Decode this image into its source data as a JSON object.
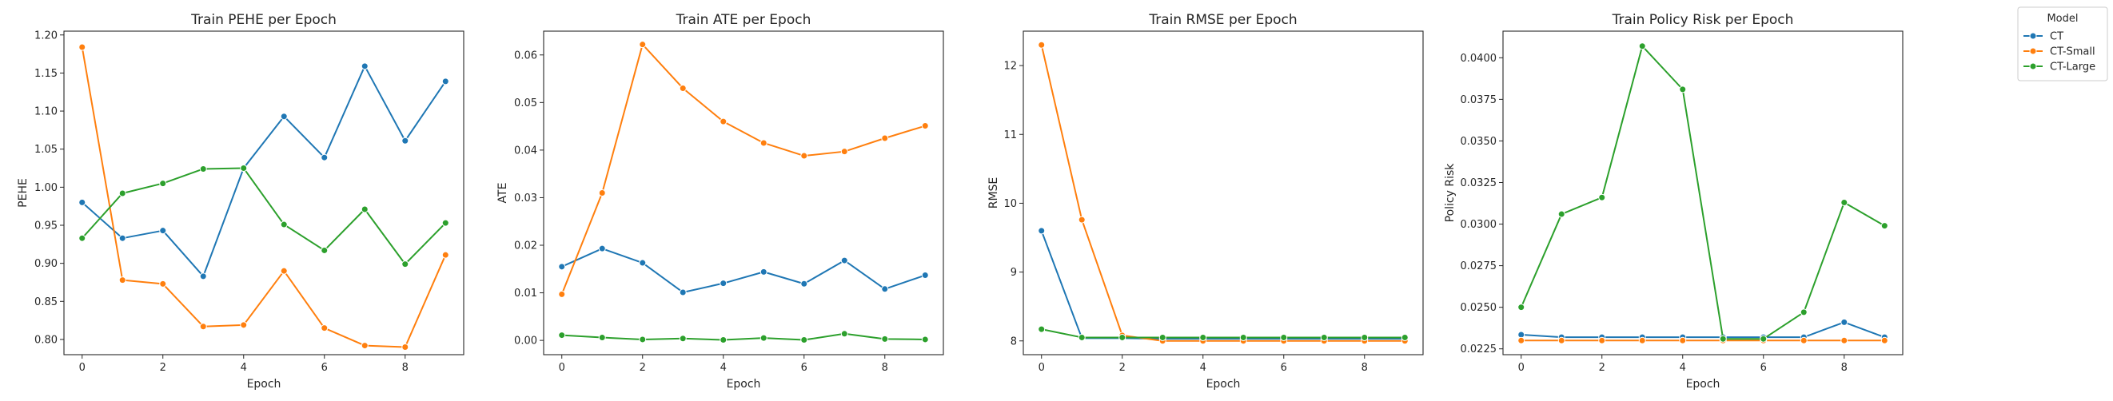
{
  "chart_data": [
    {
      "type": "line",
      "title": "Train PEHE per Epoch",
      "xlabel": "Epoch",
      "ylabel": "PEHE",
      "x": [
        0,
        1,
        2,
        3,
        4,
        5,
        6,
        7,
        8,
        9
      ],
      "xlim": [
        -0.45,
        9.45
      ],
      "ylim": [
        0.78,
        1.205
      ],
      "xticks": [
        0,
        2,
        4,
        6,
        8
      ],
      "yticks": [
        "0.80",
        "0.85",
        "0.90",
        "0.95",
        "1.00",
        "1.05",
        "1.10",
        "1.15",
        "1.20"
      ],
      "series": [
        {
          "name": "CT",
          "color": "#1f77b4",
          "values": [
            0.98,
            0.933,
            0.943,
            0.883,
            1.025,
            1.093,
            1.039,
            1.159,
            1.061,
            1.139
          ]
        },
        {
          "name": "CT-Small",
          "color": "#ff7f0e",
          "values": [
            1.184,
            0.878,
            0.873,
            0.817,
            0.819,
            0.89,
            0.815,
            0.792,
            0.79,
            0.911
          ]
        },
        {
          "name": "CT-Large",
          "color": "#2ca02c",
          "values": [
            0.933,
            0.992,
            1.005,
            1.024,
            1.025,
            0.951,
            0.917,
            0.971,
            0.899,
            0.953
          ]
        }
      ]
    },
    {
      "type": "line",
      "title": "Train ATE per Epoch",
      "xlabel": "Epoch",
      "ylabel": "ATE",
      "x": [
        0,
        1,
        2,
        3,
        4,
        5,
        6,
        7,
        8,
        9
      ],
      "xlim": [
        -0.45,
        9.45
      ],
      "ylim": [
        -0.003,
        0.065
      ],
      "xticks": [
        0,
        2,
        4,
        6,
        8
      ],
      "yticks": [
        "0.00",
        "0.01",
        "0.02",
        "0.03",
        "0.04",
        "0.05",
        "0.06"
      ],
      "series": [
        {
          "name": "CT",
          "color": "#1f77b4",
          "values": [
            0.0155,
            0.0193,
            0.0163,
            0.0101,
            0.012,
            0.0144,
            0.0119,
            0.0168,
            0.0108,
            0.0137
          ]
        },
        {
          "name": "CT-Small",
          "color": "#ff7f0e",
          "values": [
            0.0097,
            0.031,
            0.0622,
            0.053,
            0.046,
            0.0415,
            0.0388,
            0.0397,
            0.0425,
            0.0451
          ]
        },
        {
          "name": "CT-Large",
          "color": "#2ca02c",
          "values": [
            0.0011,
            0.0006,
            0.0002,
            0.0004,
            0.0001,
            0.0005,
            0.0001,
            0.0014,
            0.0003,
            0.0002
          ]
        }
      ]
    },
    {
      "type": "line",
      "title": "Train RMSE per Epoch",
      "xlabel": "Epoch",
      "ylabel": "RMSE",
      "x": [
        0,
        1,
        2,
        3,
        4,
        5,
        6,
        7,
        8,
        9
      ],
      "xlim": [
        -0.45,
        9.45
      ],
      "ylim": [
        7.8,
        12.5
      ],
      "xticks": [
        0,
        2,
        4,
        6,
        8
      ],
      "yticks": [
        "8",
        "9",
        "10",
        "11",
        "12"
      ],
      "series": [
        {
          "name": "CT",
          "color": "#1f77b4",
          "values": [
            9.6,
            8.04,
            8.04,
            8.03,
            8.03,
            8.03,
            8.03,
            8.03,
            8.03,
            8.03
          ]
        },
        {
          "name": "CT-Small",
          "color": "#ff7f0e",
          "values": [
            12.3,
            9.76,
            8.08,
            8.0,
            8.0,
            8.0,
            8.0,
            8.0,
            8.0,
            8.0
          ]
        },
        {
          "name": "CT-Large",
          "color": "#2ca02c",
          "values": [
            8.17,
            8.05,
            8.05,
            8.05,
            8.05,
            8.05,
            8.05,
            8.05,
            8.05,
            8.05
          ]
        }
      ]
    },
    {
      "type": "line",
      "title": "Train Policy Risk per Epoch",
      "xlabel": "Epoch",
      "ylabel": "Policy Risk",
      "x": [
        0,
        1,
        2,
        3,
        4,
        5,
        6,
        7,
        8,
        9
      ],
      "xlim": [
        -0.45,
        9.45
      ],
      "ylim": [
        0.02215,
        0.0416
      ],
      "xticks": [
        0,
        2,
        4,
        6,
        8
      ],
      "yticks": [
        "0.0225",
        "0.0250",
        "0.0275",
        "0.0300",
        "0.0325",
        "0.0350",
        "0.0375",
        "0.0400"
      ],
      "series": [
        {
          "name": "CT",
          "color": "#1f77b4",
          "values": [
            0.02335,
            0.0232,
            0.0232,
            0.0232,
            0.0232,
            0.0232,
            0.0232,
            0.0232,
            0.0241,
            0.0232
          ]
        },
        {
          "name": "CT-Small",
          "color": "#ff7f0e",
          "values": [
            0.023,
            0.023,
            0.023,
            0.023,
            0.023,
            0.023,
            0.023,
            0.023,
            0.023,
            0.023
          ]
        },
        {
          "name": "CT-Large",
          "color": "#2ca02c",
          "values": [
            0.025,
            0.0306,
            0.0316,
            0.0407,
            0.0381,
            0.0231,
            0.0231,
            0.0247,
            0.0313,
            0.0299
          ]
        }
      ]
    }
  ],
  "legend": {
    "title": "Model",
    "placement": "outside-top-right",
    "entries": [
      {
        "name": "CT",
        "color": "#1f77b4"
      },
      {
        "name": "CT-Small",
        "color": "#ff7f0e"
      },
      {
        "name": "CT-Large",
        "color": "#2ca02c"
      }
    ]
  }
}
